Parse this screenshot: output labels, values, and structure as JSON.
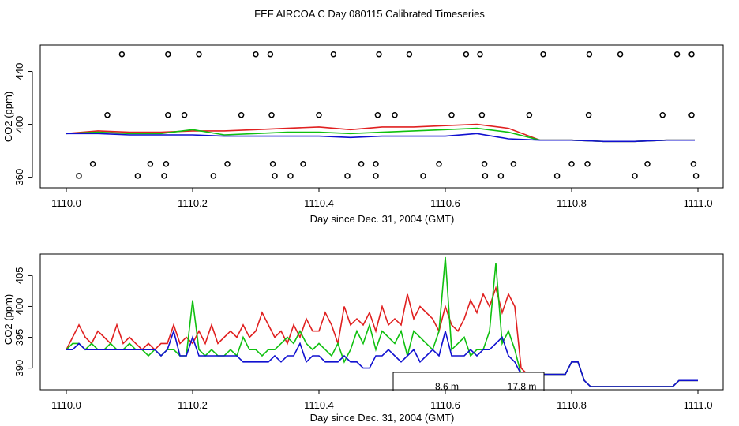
{
  "title": "FEF AIRCOA C  Day 080115  Calibrated Timeseries",
  "colors": {
    "red": "#e02020",
    "green": "#10c010",
    "blue": "#1010d0"
  },
  "chart_data": [
    {
      "type": "line",
      "panel": "top",
      "xlabel": "Day since Dec. 31, 2004 (GMT)",
      "ylabel": "CO2 (ppm)",
      "xlim": [
        1110.0,
        1111.0
      ],
      "ylim": [
        352,
        460
      ],
      "xticks": [
        "1110.0",
        "1110.2",
        "1110.4",
        "1110.6",
        "1110.8",
        "1111.0"
      ],
      "yticks": [
        "360",
        "400",
        "440"
      ],
      "series": [
        {
          "name": "red",
          "color": "#e02020",
          "x": [
            1110.0,
            1110.05,
            1110.1,
            1110.15,
            1110.2,
            1110.25,
            1110.3,
            1110.35,
            1110.4,
            1110.45,
            1110.5,
            1110.55,
            1110.6,
            1110.65,
            1110.7,
            1110.75,
            1110.8,
            1110.85,
            1110.9,
            1110.95,
            1110.995
          ],
          "values": [
            393,
            395,
            394,
            394,
            395,
            395,
            396,
            397,
            398,
            396,
            398,
            398,
            399,
            400,
            397,
            388,
            388,
            387,
            387,
            388,
            388
          ]
        },
        {
          "name": "green",
          "color": "#10c010",
          "x": [
            1110.0,
            1110.05,
            1110.1,
            1110.15,
            1110.2,
            1110.25,
            1110.3,
            1110.35,
            1110.4,
            1110.45,
            1110.5,
            1110.55,
            1110.6,
            1110.65,
            1110.7,
            1110.75,
            1110.8,
            1110.85,
            1110.9,
            1110.95,
            1110.995
          ],
          "values": [
            393,
            394,
            393,
            393,
            396,
            392,
            393,
            394,
            394,
            393,
            394,
            395,
            396,
            397,
            394,
            388,
            388,
            387,
            387,
            388,
            388
          ]
        },
        {
          "name": "blue",
          "color": "#1010d0",
          "x": [
            1110.0,
            1110.05,
            1110.1,
            1110.15,
            1110.2,
            1110.25,
            1110.3,
            1110.35,
            1110.4,
            1110.45,
            1110.5,
            1110.55,
            1110.6,
            1110.65,
            1110.7,
            1110.75,
            1110.8,
            1110.85,
            1110.9,
            1110.95,
            1110.995
          ],
          "values": [
            393,
            393,
            392,
            392,
            392,
            391,
            391,
            391,
            391,
            390,
            391,
            391,
            391,
            393,
            389,
            388,
            388,
            387,
            387,
            388,
            388
          ]
        }
      ],
      "circles": [
        {
          "x": 1110.088,
          "y": 453
        },
        {
          "x": 1110.161,
          "y": 453
        },
        {
          "x": 1110.21,
          "y": 453
        },
        {
          "x": 1110.3,
          "y": 453
        },
        {
          "x": 1110.323,
          "y": 453
        },
        {
          "x": 1110.423,
          "y": 453
        },
        {
          "x": 1110.495,
          "y": 453
        },
        {
          "x": 1110.543,
          "y": 453
        },
        {
          "x": 1110.633,
          "y": 453
        },
        {
          "x": 1110.655,
          "y": 453
        },
        {
          "x": 1110.755,
          "y": 453
        },
        {
          "x": 1110.828,
          "y": 453
        },
        {
          "x": 1110.877,
          "y": 453
        },
        {
          "x": 1110.967,
          "y": 453
        },
        {
          "x": 1110.99,
          "y": 453
        },
        {
          "x": 1110.065,
          "y": 407
        },
        {
          "x": 1110.161,
          "y": 407
        },
        {
          "x": 1110.187,
          "y": 407
        },
        {
          "x": 1110.277,
          "y": 407
        },
        {
          "x": 1110.325,
          "y": 407
        },
        {
          "x": 1110.4,
          "y": 407
        },
        {
          "x": 1110.493,
          "y": 407
        },
        {
          "x": 1110.52,
          "y": 407
        },
        {
          "x": 1110.61,
          "y": 407
        },
        {
          "x": 1110.658,
          "y": 407
        },
        {
          "x": 1110.733,
          "y": 407
        },
        {
          "x": 1110.827,
          "y": 407
        },
        {
          "x": 1110.944,
          "y": 407
        },
        {
          "x": 1110.99,
          "y": 407
        },
        {
          "x": 1110.042,
          "y": 370
        },
        {
          "x": 1110.133,
          "y": 370
        },
        {
          "x": 1110.158,
          "y": 370
        },
        {
          "x": 1110.255,
          "y": 370
        },
        {
          "x": 1110.327,
          "y": 370
        },
        {
          "x": 1110.375,
          "y": 370
        },
        {
          "x": 1110.467,
          "y": 370
        },
        {
          "x": 1110.49,
          "y": 370
        },
        {
          "x": 1110.59,
          "y": 370
        },
        {
          "x": 1110.662,
          "y": 370
        },
        {
          "x": 1110.708,
          "y": 370
        },
        {
          "x": 1110.8,
          "y": 370
        },
        {
          "x": 1110.825,
          "y": 370
        },
        {
          "x": 1110.92,
          "y": 370
        },
        {
          "x": 1110.993,
          "y": 370
        },
        {
          "x": 1110.02,
          "y": 361
        },
        {
          "x": 1110.113,
          "y": 361
        },
        {
          "x": 1110.155,
          "y": 361
        },
        {
          "x": 1110.233,
          "y": 361
        },
        {
          "x": 1110.33,
          "y": 361
        },
        {
          "x": 1110.355,
          "y": 361
        },
        {
          "x": 1110.445,
          "y": 361
        },
        {
          "x": 1110.49,
          "y": 361
        },
        {
          "x": 1110.565,
          "y": 361
        },
        {
          "x": 1110.663,
          "y": 361
        },
        {
          "x": 1110.688,
          "y": 361
        },
        {
          "x": 1110.777,
          "y": 361
        },
        {
          "x": 1110.9,
          "y": 361
        },
        {
          "x": 1110.997,
          "y": 361
        }
      ]
    },
    {
      "type": "line",
      "panel": "bottom",
      "xlabel": "Day since Dec. 31, 2004 (GMT)",
      "ylabel": "CO2 (ppm)",
      "xlim": [
        1110.0,
        1111.0
      ],
      "ylim": [
        386.5,
        408.5
      ],
      "xticks": [
        "1110.0",
        "1110.2",
        "1110.4",
        "1110.6",
        "1110.8",
        "1111.0"
      ],
      "yticks": [
        "390",
        "395",
        "400",
        "405"
      ],
      "inset_text": [
        "8.6 m",
        "17.8 m"
      ],
      "series": [
        {
          "name": "red",
          "color": "#e02020",
          "x": [
            1110.0,
            1110.01,
            1110.02,
            1110.03,
            1110.04,
            1110.05,
            1110.06,
            1110.07,
            1110.08,
            1110.09,
            1110.1,
            1110.11,
            1110.12,
            1110.13,
            1110.14,
            1110.15,
            1110.16,
            1110.17,
            1110.18,
            1110.19,
            1110.2,
            1110.21,
            1110.22,
            1110.23,
            1110.24,
            1110.25,
            1110.26,
            1110.27,
            1110.28,
            1110.29,
            1110.3,
            1110.31,
            1110.32,
            1110.33,
            1110.34,
            1110.35,
            1110.36,
            1110.37,
            1110.38,
            1110.39,
            1110.4,
            1110.41,
            1110.42,
            1110.43,
            1110.44,
            1110.45,
            1110.46,
            1110.47,
            1110.48,
            1110.49,
            1110.5,
            1110.51,
            1110.52,
            1110.53,
            1110.54,
            1110.55,
            1110.56,
            1110.57,
            1110.58,
            1110.59,
            1110.6,
            1110.61,
            1110.62,
            1110.63,
            1110.64,
            1110.65,
            1110.66,
            1110.67,
            1110.68,
            1110.69,
            1110.7,
            1110.71,
            1110.72,
            1110.73,
            1110.74,
            1110.75,
            1110.76,
            1110.77,
            1110.78,
            1110.79,
            1110.8,
            1110.81,
            1110.82,
            1110.83,
            1110.84,
            1110.85,
            1110.86,
            1110.87,
            1110.88,
            1110.89,
            1110.9,
            1110.91,
            1110.92,
            1110.93,
            1110.94,
            1110.95,
            1110.96,
            1110.97,
            1110.98,
            1110.99,
            1111.0
          ],
          "values": [
            393,
            395,
            397,
            395,
            394,
            396,
            395,
            394,
            397,
            394,
            395,
            394,
            393,
            394,
            393,
            394,
            394,
            397,
            394,
            395,
            394,
            396,
            394,
            397,
            394,
            395,
            396,
            395,
            397,
            395,
            396,
            399,
            397,
            395,
            396,
            394,
            397,
            395,
            398,
            396,
            396,
            399,
            397,
            394,
            400,
            397,
            398,
            397,
            399,
            396,
            400,
            397,
            398,
            397,
            402,
            398,
            400,
            399,
            398,
            396,
            400,
            397,
            396,
            398,
            401,
            399,
            402,
            400,
            403,
            399,
            402,
            400,
            390,
            389,
            389,
            389,
            389,
            389,
            389,
            389,
            391,
            391,
            388,
            387,
            387,
            387,
            387,
            387,
            387,
            387,
            387,
            387,
            387,
            387,
            387,
            387,
            387,
            388,
            388,
            388,
            388
          ]
        },
        {
          "name": "green",
          "color": "#10c010",
          "x": [
            1110.0,
            1110.01,
            1110.02,
            1110.03,
            1110.04,
            1110.05,
            1110.06,
            1110.07,
            1110.08,
            1110.09,
            1110.1,
            1110.11,
            1110.12,
            1110.13,
            1110.14,
            1110.15,
            1110.16,
            1110.17,
            1110.18,
            1110.19,
            1110.2,
            1110.21,
            1110.22,
            1110.23,
            1110.24,
            1110.25,
            1110.26,
            1110.27,
            1110.28,
            1110.29,
            1110.3,
            1110.31,
            1110.32,
            1110.33,
            1110.34,
            1110.35,
            1110.36,
            1110.37,
            1110.38,
            1110.39,
            1110.4,
            1110.41,
            1110.42,
            1110.43,
            1110.44,
            1110.45,
            1110.46,
            1110.47,
            1110.48,
            1110.49,
            1110.5,
            1110.51,
            1110.52,
            1110.53,
            1110.54,
            1110.55,
            1110.56,
            1110.57,
            1110.58,
            1110.59,
            1110.6,
            1110.61,
            1110.62,
            1110.63,
            1110.64,
            1110.65,
            1110.66,
            1110.67,
            1110.68,
            1110.69,
            1110.7,
            1110.71,
            1110.72,
            1110.73,
            1110.74,
            1110.75,
            1110.76,
            1110.77,
            1110.78,
            1110.79,
            1110.8,
            1110.81,
            1110.82,
            1110.83,
            1110.84,
            1110.85,
            1110.86,
            1110.87,
            1110.88,
            1110.89,
            1110.9,
            1110.91,
            1110.92,
            1110.93,
            1110.94,
            1110.95,
            1110.96,
            1110.97,
            1110.98,
            1110.99,
            1111.0
          ],
          "values": [
            393,
            394,
            394,
            393,
            394,
            393,
            393,
            394,
            393,
            393,
            394,
            393,
            393,
            392,
            393,
            392,
            393,
            393,
            392,
            392,
            401,
            393,
            392,
            393,
            392,
            392,
            393,
            392,
            395,
            393,
            393,
            392,
            393,
            393,
            394,
            395,
            394,
            396,
            394,
            393,
            394,
            393,
            392,
            394,
            391,
            393,
            396,
            394,
            397,
            393,
            396,
            395,
            394,
            396,
            392,
            396,
            395,
            394,
            393,
            396,
            408,
            393,
            394,
            395,
            392,
            393,
            393,
            396,
            407,
            394,
            396,
            393,
            389,
            388,
            389,
            389,
            389,
            389,
            389,
            389,
            391,
            391,
            388,
            387,
            387,
            387,
            387,
            387,
            387,
            387,
            387,
            387,
            387,
            387,
            387,
            387,
            387,
            388,
            388,
            388,
            388
          ]
        },
        {
          "name": "blue",
          "color": "#1010d0",
          "x": [
            1110.0,
            1110.01,
            1110.02,
            1110.03,
            1110.04,
            1110.05,
            1110.06,
            1110.07,
            1110.08,
            1110.09,
            1110.1,
            1110.11,
            1110.12,
            1110.13,
            1110.14,
            1110.15,
            1110.16,
            1110.17,
            1110.18,
            1110.19,
            1110.2,
            1110.21,
            1110.22,
            1110.23,
            1110.24,
            1110.25,
            1110.26,
            1110.27,
            1110.28,
            1110.29,
            1110.3,
            1110.31,
            1110.32,
            1110.33,
            1110.34,
            1110.35,
            1110.36,
            1110.37,
            1110.38,
            1110.39,
            1110.4,
            1110.41,
            1110.42,
            1110.43,
            1110.44,
            1110.45,
            1110.46,
            1110.47,
            1110.48,
            1110.49,
            1110.5,
            1110.51,
            1110.52,
            1110.53,
            1110.54,
            1110.55,
            1110.56,
            1110.57,
            1110.58,
            1110.59,
            1110.6,
            1110.61,
            1110.62,
            1110.63,
            1110.64,
            1110.65,
            1110.66,
            1110.67,
            1110.68,
            1110.69,
            1110.7,
            1110.71,
            1110.72,
            1110.73,
            1110.74,
            1110.75,
            1110.76,
            1110.77,
            1110.78,
            1110.79,
            1110.8,
            1110.81,
            1110.82,
            1110.83,
            1110.84,
            1110.85,
            1110.86,
            1110.87,
            1110.88,
            1110.89,
            1110.9,
            1110.91,
            1110.92,
            1110.93,
            1110.94,
            1110.95,
            1110.96,
            1110.97,
            1110.98,
            1110.99,
            1111.0
          ],
          "values": [
            393,
            393,
            394,
            393,
            393,
            393,
            393,
            393,
            393,
            393,
            393,
            393,
            393,
            393,
            393,
            392,
            393,
            396,
            392,
            392,
            395,
            392,
            392,
            392,
            392,
            392,
            392,
            392,
            391,
            391,
            391,
            391,
            391,
            392,
            391,
            392,
            392,
            394,
            391,
            392,
            392,
            391,
            391,
            391,
            392,
            391,
            391,
            390,
            390,
            392,
            392,
            393,
            392,
            391,
            392,
            393,
            391,
            392,
            393,
            392,
            396,
            392,
            392,
            392,
            393,
            392,
            393,
            393,
            394,
            395,
            392,
            391,
            389,
            388,
            388,
            389,
            389,
            389,
            389,
            389,
            391,
            391,
            388,
            387,
            387,
            387,
            387,
            387,
            387,
            387,
            387,
            387,
            387,
            387,
            387,
            387,
            387,
            388,
            388,
            388,
            388
          ]
        }
      ]
    }
  ]
}
